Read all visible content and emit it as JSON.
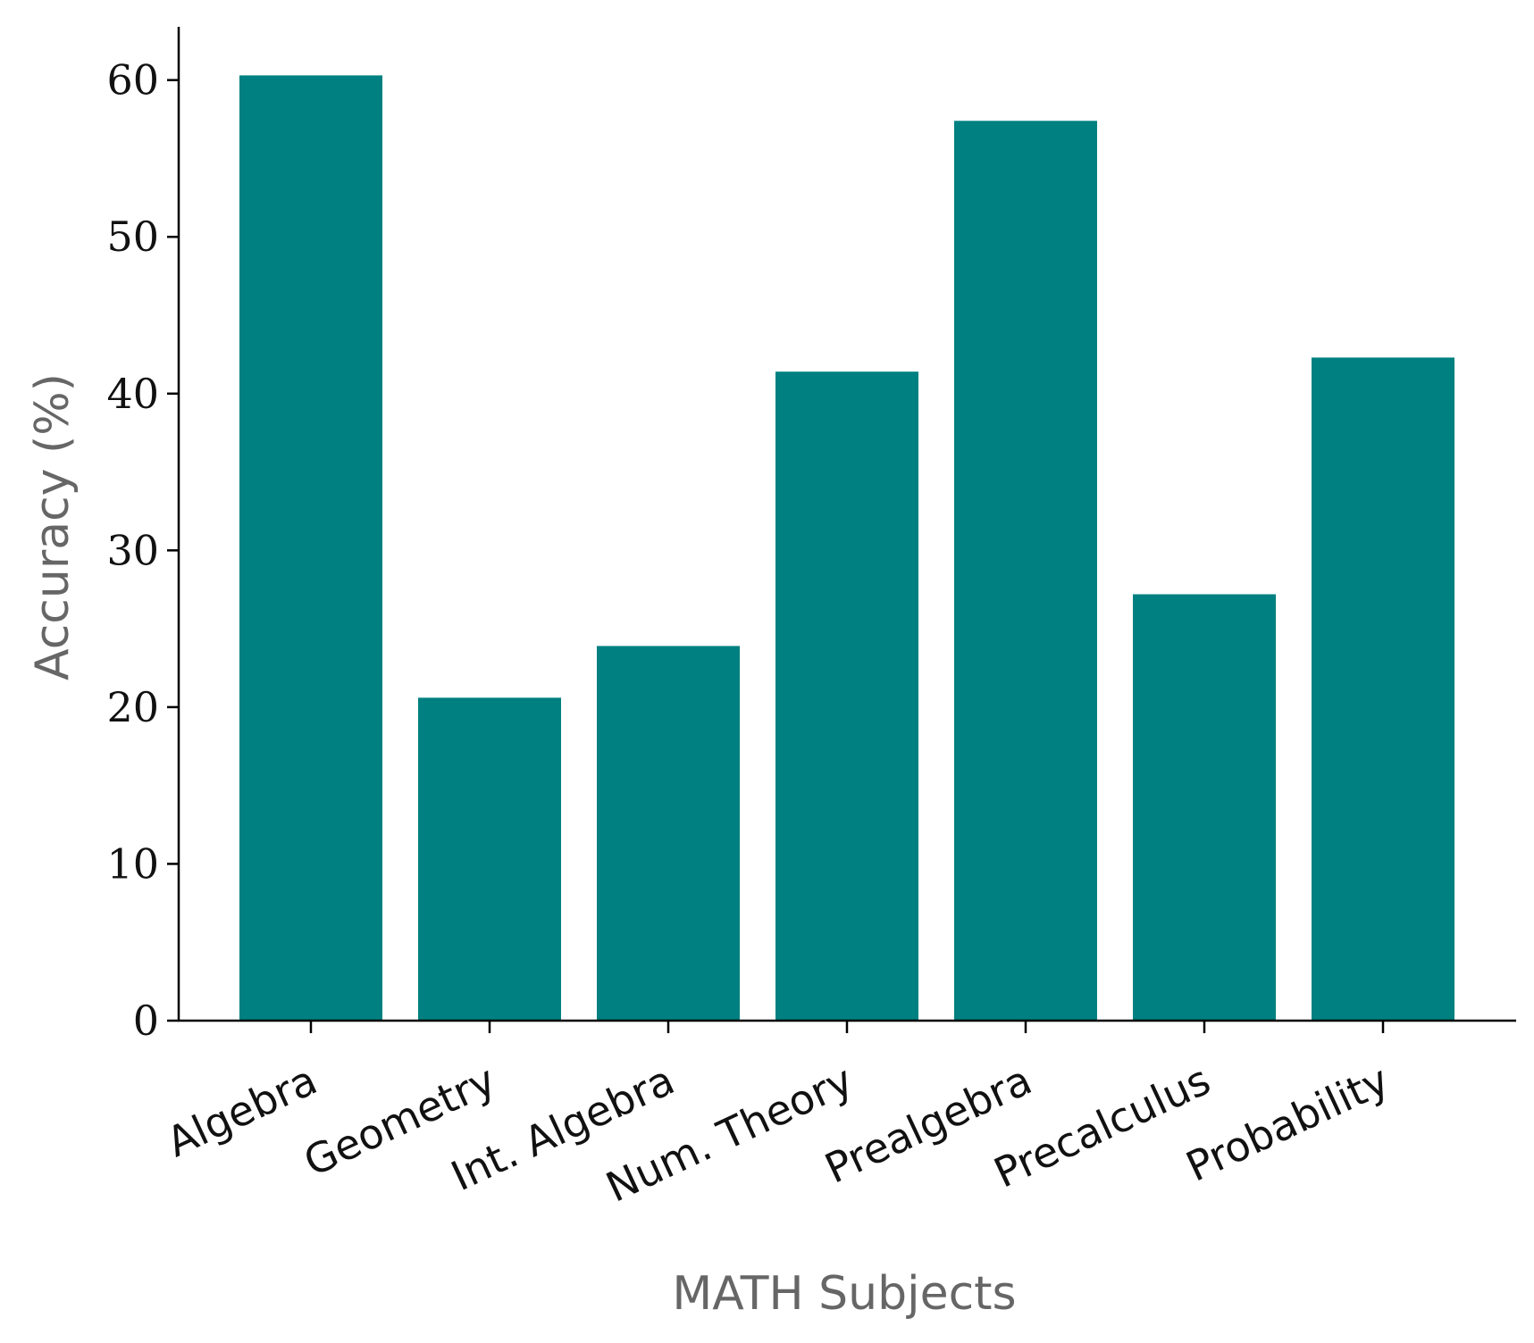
{
  "chart_data": {
    "type": "bar",
    "categories": [
      "Algebra",
      "Geometry",
      "Int. Algebra",
      "Num. Theory",
      "Prealgebra",
      "Precalculus",
      "Probability"
    ],
    "values": [
      60.3,
      20.6,
      23.9,
      41.4,
      57.4,
      27.2,
      42.3
    ],
    "xlabel": "MATH Subjects",
    "ylabel": "Accuracy (%)",
    "ylim": [
      0,
      63.4
    ],
    "yticks": [
      0,
      10,
      20,
      30,
      40,
      50,
      60
    ],
    "grid": false,
    "bar_color": "#008080",
    "axis_color": "#000000",
    "label_color": "#666666"
  }
}
